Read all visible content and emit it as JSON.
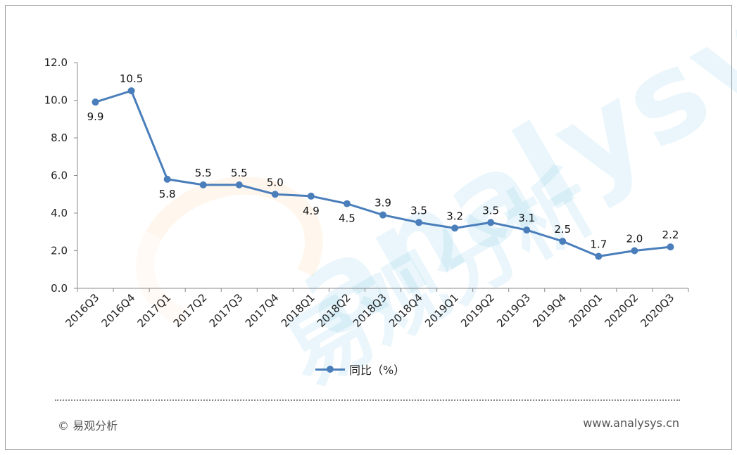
{
  "chart_data": {
    "type": "line",
    "categories": [
      "2016Q3",
      "2016Q4",
      "2017Q1",
      "2017Q2",
      "2017Q3",
      "2017Q4",
      "2018Q1",
      "2018Q2",
      "2018Q3",
      "2018Q4",
      "2019Q1",
      "2019Q2",
      "2019Q3",
      "2019Q4",
      "2020Q1",
      "2020Q2",
      "2020Q3"
    ],
    "series": [
      {
        "name": "同比（%）",
        "values": [
          9.9,
          10.5,
          5.8,
          5.5,
          5.5,
          5.0,
          4.9,
          4.5,
          3.9,
          3.5,
          3.2,
          3.5,
          3.1,
          2.5,
          1.7,
          2.0,
          2.2
        ],
        "labels": [
          "9.9",
          "10.5",
          "5.8",
          "5.5",
          "5.5",
          "5.0",
          "4.9",
          "4.5",
          "3.9",
          "3.5",
          "3.2",
          "3.5",
          "3.1",
          "2.5",
          "1.7",
          "2.0",
          "2.2"
        ],
        "color": "#4a7ebb"
      }
    ],
    "ylim": [
      0,
      12
    ],
    "yticks": [
      "0.0",
      "2.0",
      "4.0",
      "6.0",
      "8.0",
      "10.0",
      "12.0"
    ],
    "grid": false,
    "legend": "bottom",
    "title": "",
    "xlabel": "",
    "ylabel": ""
  },
  "footer": {
    "copyright": "© 易观分析",
    "website": "www.analysys.cn"
  },
  "watermark": {
    "brand": "analysys",
    "cn": "易观分析"
  }
}
